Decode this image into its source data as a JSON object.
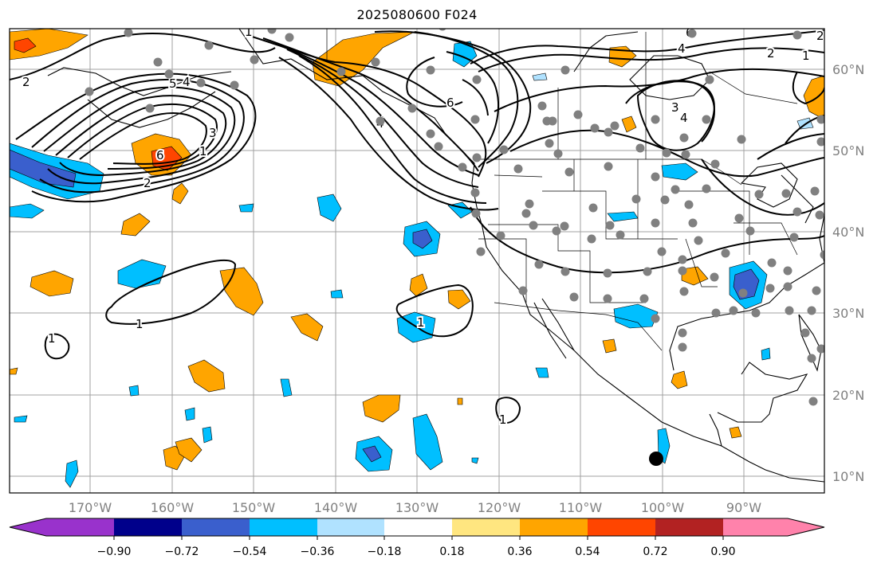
{
  "title": "2025080600 F024",
  "map": {
    "lon_labels": [
      "170°W",
      "160°W",
      "150°W",
      "140°W",
      "130°W",
      "120°W",
      "110°W",
      "100°W",
      "90°W"
    ],
    "lat_labels": [
      "60°N",
      "50°N",
      "40°N",
      "30°N",
      "20°N",
      "10°N"
    ],
    "contour_labels": [
      "2",
      "2",
      "3",
      "1",
      "6",
      "5",
      "4",
      "4",
      "6",
      "4",
      "3",
      "2",
      "1",
      "6",
      "3",
      "4",
      "2",
      "1",
      "1",
      "1",
      "1",
      "1"
    ],
    "colors": {
      "station": "#808080",
      "contour": "#000000",
      "grid": "#a0a0a0"
    }
  },
  "colorbar": {
    "labels": [
      "−0.90",
      "−0.72",
      "−0.54",
      "−0.36",
      "−0.18",
      "0.18",
      "0.36",
      "0.54",
      "0.72",
      "0.90"
    ],
    "colors": [
      "#9932cc",
      "#00008b",
      "#3a5fcd",
      "#00bfff",
      "#b0e2ff",
      "#ffffff",
      "#ffe680",
      "#ffa500",
      "#ff4500",
      "#b22222",
      "#ff82ab"
    ]
  }
}
